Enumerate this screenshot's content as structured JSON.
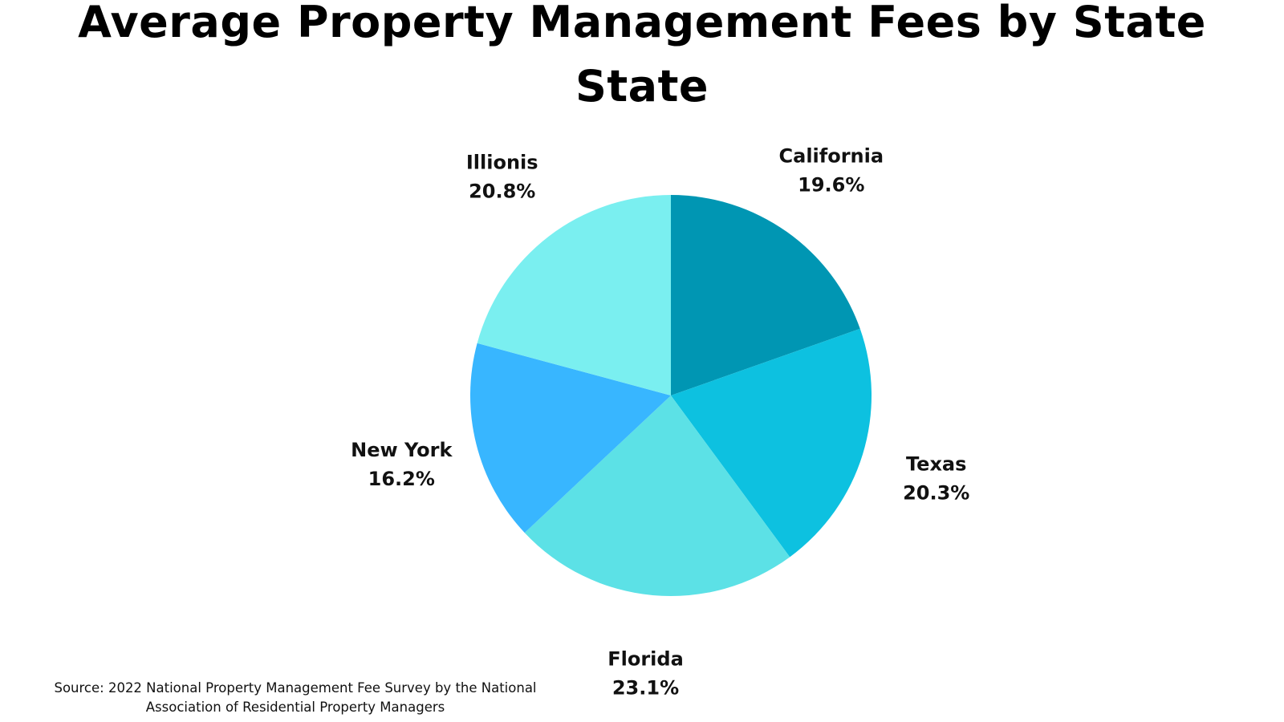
{
  "chart_data": {
    "type": "pie",
    "title_lines": [
      "Average Property Management Fees by State",
      "State"
    ],
    "start_angle_deg": 0,
    "direction": "clockwise",
    "slices": [
      {
        "label": "California",
        "value": 19.6,
        "display": "19.6%",
        "color": "#0096B3"
      },
      {
        "label": "Texas",
        "value": 20.3,
        "display": "20.3%",
        "color": "#0DC1E0"
      },
      {
        "label": "Florida",
        "value": 23.1,
        "display": "23.1%",
        "color": "#5CE1E6"
      },
      {
        "label": "New York",
        "value": 16.2,
        "display": "16.2%",
        "color": "#38B6FF"
      },
      {
        "label": "Illionis",
        "value": 20.8,
        "display": "20.8%",
        "color": "#7AEFF0"
      }
    ],
    "legend": "none",
    "labels": "outside-slices"
  },
  "footer": {
    "source_lines": [
      "Source: 2022 National Property Management Fee Survey by the National",
      "Association of Residential Property Managers"
    ]
  }
}
